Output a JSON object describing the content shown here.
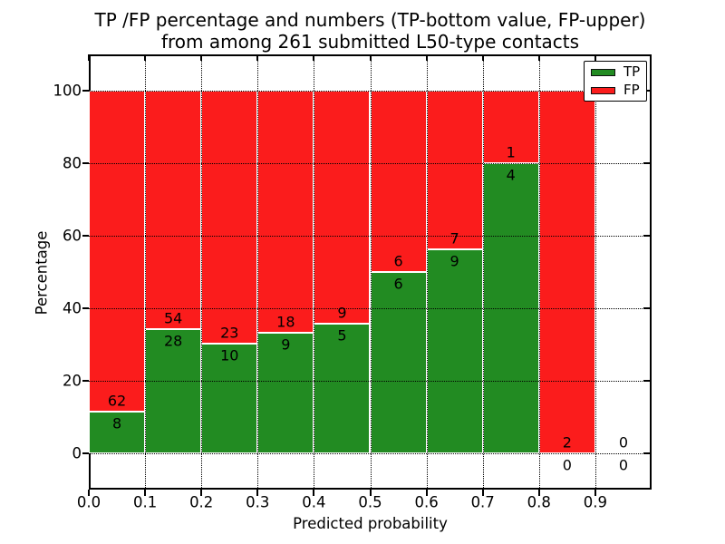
{
  "chart_data": {
    "type": "bar",
    "stacked": true,
    "title_line1": "TP /FP percentage and numbers (TP-bottom value, FP-upper)",
    "title_line2": "from among 261 submitted L50-type contacts",
    "xlabel": "Predicted probability",
    "ylabel": "Percentage",
    "xlim": [
      0.0,
      1.0
    ],
    "ylim": [
      -10,
      110
    ],
    "xtick_labels": [
      "0.0",
      "0.1",
      "0.2",
      "0.3",
      "0.4",
      "0.5",
      "0.6",
      "0.7",
      "0.8",
      "0.9"
    ],
    "ytick_labels": [
      "0",
      "20",
      "40",
      "60",
      "80",
      "100"
    ],
    "grid": "dotted black, horizontal at y ticks and vertical at x ticks",
    "total_contacts": 261,
    "legend": {
      "position": "upper right",
      "entries": [
        {
          "label": "TP",
          "color": "#228b22"
        },
        {
          "label": "FP",
          "color": "#fb1c1c"
        }
      ]
    },
    "bins": [
      {
        "x_range": [
          0.0,
          0.1
        ],
        "tp": 8,
        "fp": 62,
        "tp_pct": 11.43
      },
      {
        "x_range": [
          0.1,
          0.2
        ],
        "tp": 28,
        "fp": 54,
        "tp_pct": 34.15
      },
      {
        "x_range": [
          0.2,
          0.3
        ],
        "tp": 10,
        "fp": 23,
        "tp_pct": 30.3
      },
      {
        "x_range": [
          0.3,
          0.4
        ],
        "tp": 9,
        "fp": 18,
        "tp_pct": 33.33
      },
      {
        "x_range": [
          0.4,
          0.5
        ],
        "tp": 5,
        "fp": 9,
        "tp_pct": 35.71
      },
      {
        "x_range": [
          0.5,
          0.6
        ],
        "tp": 6,
        "fp": 6,
        "tp_pct": 50.0
      },
      {
        "x_range": [
          0.6,
          0.7
        ],
        "tp": 9,
        "fp": 7,
        "tp_pct": 56.25
      },
      {
        "x_range": [
          0.7,
          0.8
        ],
        "tp": 4,
        "fp": 1,
        "tp_pct": 80.0
      },
      {
        "x_range": [
          0.8,
          0.9
        ],
        "tp": 0,
        "fp": 2,
        "tp_pct": 0.0
      },
      {
        "x_range": [
          0.9,
          1.0
        ],
        "tp": 0,
        "fp": 0,
        "tp_pct": null
      }
    ]
  },
  "colors": {
    "tp": "#228b22",
    "fp": "#fb1c1c",
    "axis": "#000000",
    "grid": "#000000",
    "bar_edge": "#ffffff",
    "background": "#ffffff"
  }
}
